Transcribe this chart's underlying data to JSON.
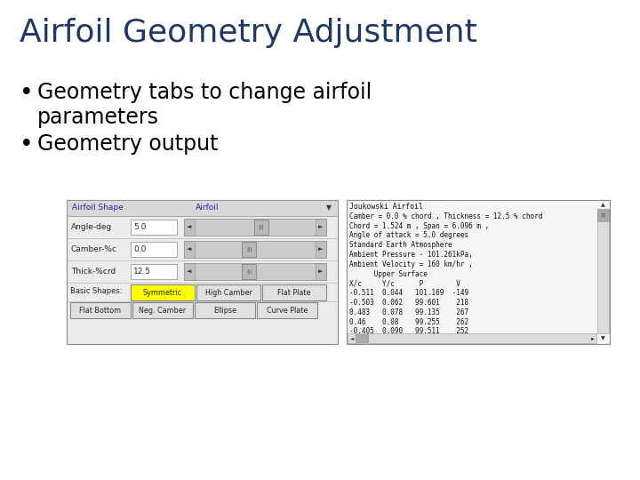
{
  "title": "Airfoil Geometry Adjustment",
  "title_color": "#1F3864",
  "bullet_points": [
    "Geometry tabs to change airfoil\nparameters",
    "Geometry output"
  ],
  "background_color": "#FFFFFF",
  "bullet_color": "#000000",
  "bullet_fontsize": 17,
  "title_fontsize": 26,
  "left_panel": {
    "header_label": "Airfoil Shape",
    "dropdown_label": "Airfoil",
    "rows": [
      {
        "label": "Angle-deg",
        "value": "5.0"
      },
      {
        "label": "Camber-%c",
        "value": "0.0"
      },
      {
        "label": "Thick-%crd",
        "value": "12.5"
      }
    ],
    "basic_shapes_label": "Basic Shapes:",
    "buttons_row1": [
      "Symmetric",
      "High Camber",
      "Flat Plate"
    ],
    "buttons_row2": [
      "Flat Bottom",
      "Neg. Camber",
      "Ellipse",
      "Curve Plate"
    ],
    "highlight_button": "Symmetric"
  },
  "right_panel": {
    "title_line": "Joukowski Airfoil",
    "lines": [
      "Camber = 0.0 % chord , Thickness = 12.5 % chord",
      "Chord = 1.524 m , Span = 6.096 m ,",
      "Angle of attack = 5.0 degrees",
      "Standard Earth Atmosphere",
      "Ambient Pressure - 101.261kPa,",
      "Ambient Velocity = 160 km/hr ,",
      "      Upper Surface",
      "X/c     Y/c      P        V",
      "-0.511  0.044   101.169  -149",
      "-0.503  0.062   99.601    218",
      "0.483   0.078   99.135    267",
      "0.46    0.08    99.255    262",
      "-0.405  0.090   99.511    252"
    ]
  }
}
